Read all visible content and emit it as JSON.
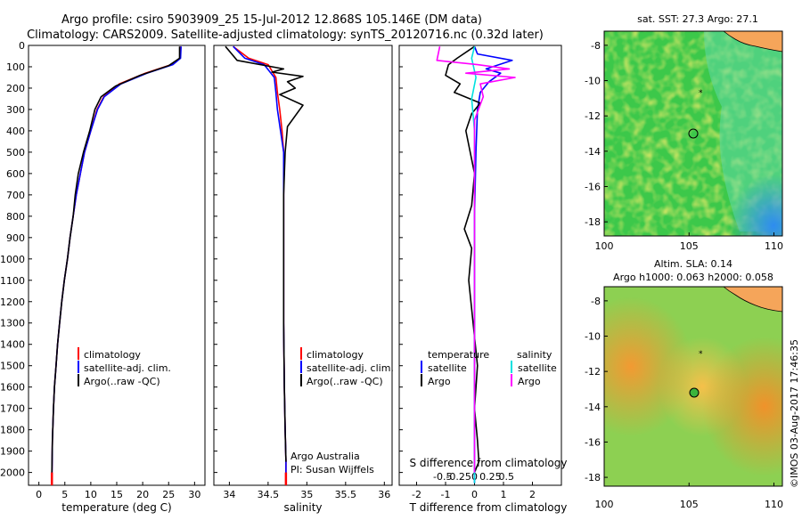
{
  "header": {
    "line1": "Argo profile: csiro 5903909_25 15-Jul-2012 12.868S 105.146E (DM data)",
    "line2": "Climatology: CARS2009. Satellite-adjusted climatology: synTS_20120716.nc (0.32d later)"
  },
  "colors": {
    "climatology": "#ff0000",
    "satellite": "#0000ff",
    "argo": "#000000",
    "argo_s": "#ff00ff",
    "sat_s": "#00e0e0"
  },
  "legend_profiles": {
    "climatology": "climatology",
    "satellite": "satellite-adj. clim.",
    "argo": "Argo(..raw -QC)"
  },
  "legend_diff": {
    "temperature": "temperature",
    "salinity": "salinity",
    "satellite": "satellite",
    "argo": "Argo"
  },
  "credits": {
    "line1": "Argo Australia",
    "line2": "PI: Susan Wijffels"
  },
  "maps": {
    "sst_title": "sat. SST: 27.3  Argo: 27.1",
    "sla_title1": "Altim. SLA: 0.14",
    "sla_title2": "Argo h1000: 0.063 h2000: 0.058",
    "lon_ticks": [
      "100",
      "105",
      "110"
    ],
    "lat_ticks": [
      "-8",
      "-10",
      "-12",
      "-14",
      "-16",
      "-18"
    ]
  },
  "watermark": "©IMOS 03-Aug-2017 17:46:35",
  "chart_data": [
    {
      "type": "line",
      "panel": "temperature",
      "xlabel": "temperature (deg C)",
      "xticks": [
        "0",
        "5",
        "10",
        "15",
        "20",
        "25",
        "30"
      ],
      "xlim": [
        -2,
        32
      ],
      "yticks": [
        "0",
        "100",
        "200",
        "300",
        "400",
        "500",
        "600",
        "700",
        "800",
        "900",
        "1000",
        "1100",
        "1200",
        "1300",
        "1400",
        "1500",
        "1600",
        "1700",
        "1800",
        "1900",
        "2000"
      ],
      "ylim": [
        0,
        2060
      ],
      "y_inverted": true,
      "series": [
        {
          "name": "climatology",
          "color": "#ff0000",
          "x": [
            27.3,
            27.2,
            25.5,
            20.5,
            15.5,
            12.5,
            11.2,
            10.0,
            8.8,
            8.0,
            7.2,
            6.6,
            6.0,
            5.5,
            4.9,
            4.4,
            4.0,
            3.6,
            3.3,
            3.0,
            2.8,
            2.6,
            2.5
          ],
          "depth": [
            5,
            60,
            90,
            130,
            180,
            240,
            300,
            400,
            500,
            600,
            700,
            800,
            900,
            1000,
            1100,
            1200,
            1300,
            1400,
            1500,
            1600,
            1700,
            1850,
            2050
          ]
        },
        {
          "name": "satellite-adj. clim.",
          "color": "#0000ff",
          "x": [
            27.4,
            27.3,
            25.8,
            20.8,
            15.8,
            12.6,
            11.3,
            10.0,
            8.8,
            8.0,
            7.2,
            6.6,
            6.0,
            5.5,
            4.9,
            4.4,
            4.0,
            3.6,
            3.3,
            3.0,
            2.8,
            2.6,
            2.5
          ],
          "depth": [
            5,
            60,
            90,
            130,
            180,
            240,
            300,
            400,
            500,
            600,
            700,
            800,
            900,
            1000,
            1100,
            1200,
            1300,
            1400,
            1500,
            1600,
            1700,
            1850,
            2050
          ]
        },
        {
          "name": "Argo(..raw -QC)",
          "color": "#000000",
          "x": [
            27.1,
            27.1,
            25.0,
            19.5,
            14.8,
            12.0,
            10.8,
            9.8,
            8.6,
            7.6,
            7.0,
            6.6,
            6.0,
            5.5,
            4.9,
            4.4,
            4.0,
            3.6,
            3.3,
            3.0,
            2.8,
            2.6,
            2.5
          ],
          "depth": [
            5,
            60,
            95,
            140,
            190,
            240,
            300,
            400,
            500,
            600,
            700,
            800,
            900,
            1000,
            1100,
            1200,
            1300,
            1400,
            1500,
            1600,
            1700,
            1850,
            2000
          ]
        }
      ]
    },
    {
      "type": "line",
      "panel": "salinity",
      "xlabel": "salinity",
      "xticks": [
        "34",
        "34.5",
        "35",
        "35.5",
        "36"
      ],
      "xlim": [
        33.8,
        36.1
      ],
      "ylim": [
        0,
        2060
      ],
      "y_inverted": true,
      "series": [
        {
          "name": "climatology",
          "color": "#ff0000",
          "x": [
            34.05,
            34.25,
            34.5,
            34.6,
            34.62,
            34.65,
            34.68,
            34.7,
            34.7,
            34.7,
            34.7,
            34.71,
            34.72,
            34.73,
            34.73
          ],
          "depth": [
            5,
            60,
            90,
            150,
            220,
            300,
            400,
            500,
            700,
            1000,
            1300,
            1600,
            1800,
            1950,
            2050
          ]
        },
        {
          "name": "satellite-adj. clim.",
          "color": "#0000ff",
          "x": [
            34.05,
            34.2,
            34.45,
            34.58,
            34.6,
            34.62,
            34.66,
            34.7,
            34.7,
            34.7,
            34.7,
            34.71,
            34.72,
            34.73,
            34.73
          ],
          "depth": [
            5,
            60,
            90,
            150,
            220,
            300,
            400,
            500,
            700,
            1000,
            1300,
            1600,
            1800,
            1950,
            2050
          ]
        },
        {
          "name": "Argo(..raw -QC)",
          "color": "#000000",
          "x": [
            33.95,
            34.1,
            34.7,
            34.55,
            34.95,
            34.75,
            34.85,
            34.65,
            34.95,
            34.75,
            34.72,
            34.7,
            34.7,
            34.7,
            34.71,
            34.72,
            34.73
          ],
          "depth": [
            5,
            70,
            110,
            125,
            145,
            170,
            200,
            230,
            280,
            380,
            500,
            700,
            1000,
            1300,
            1600,
            1800,
            1950
          ]
        }
      ]
    },
    {
      "type": "line",
      "panel": "difference",
      "xlabel": "T difference from climatology",
      "xlabel2": "S difference from climatology",
      "xticks": [
        "-2",
        "-1",
        "0",
        "1",
        "2"
      ],
      "xticks2": [
        "-0.5",
        "-0.25",
        "0",
        "0.25",
        "0.5"
      ],
      "xlim": [
        -2.6,
        3.0
      ],
      "ylim": [
        0,
        2060
      ],
      "y_inverted": true,
      "series": [
        {
          "name": "temperature satellite",
          "color": "#0000ff",
          "x": [
            0.0,
            0.1,
            1.3,
            0.4,
            0.9,
            0.5,
            0.2,
            0.1,
            0.05,
            0.0,
            0.0,
            0.0,
            0.0,
            0.0
          ],
          "depth": [
            5,
            40,
            70,
            110,
            130,
            170,
            220,
            300,
            500,
            800,
            1200,
            1600,
            1900,
            2050
          ]
        },
        {
          "name": "temperature Argo",
          "color": "#000000",
          "x": [
            0.0,
            -0.6,
            -0.9,
            -1.0,
            -0.5,
            -0.7,
            0.2,
            -0.1,
            -0.3,
            0.0,
            -0.1,
            -0.35,
            -0.1,
            -0.2,
            -0.05,
            0.1,
            0.0,
            0.1,
            0.15,
            0.0
          ],
          "depth": [
            5,
            60,
            90,
            140,
            180,
            220,
            270,
            320,
            400,
            600,
            750,
            860,
            950,
            1100,
            1300,
            1500,
            1700,
            1850,
            1950,
            2000
          ]
        },
        {
          "name": "salinity satellite",
          "color": "#00e0e0",
          "x": [
            0.0,
            -0.1,
            -0.05,
            0.05,
            -0.1,
            0.0,
            0.0,
            0.0,
            0.0,
            0.0
          ],
          "depth": [
            5,
            60,
            90,
            150,
            250,
            400,
            700,
            1000,
            1500,
            2050
          ]
        },
        {
          "name": "salinity Argo",
          "color": "#ff00ff",
          "x": [
            -1.2,
            -1.3,
            0.1,
            1.2,
            -0.3,
            1.4,
            0.2,
            0.3,
            0.0,
            0.0,
            0.0,
            0.0
          ],
          "depth": [
            5,
            70,
            90,
            110,
            130,
            150,
            180,
            240,
            350,
            600,
            1000,
            2000
          ]
        }
      ]
    }
  ]
}
